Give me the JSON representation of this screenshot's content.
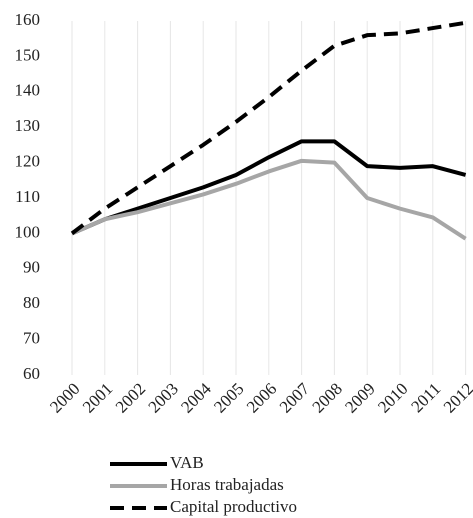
{
  "chart_data": {
    "type": "line",
    "categories": [
      "2000",
      "2001",
      "2002",
      "2003",
      "2004",
      "2005",
      "2006",
      "2007",
      "2008",
      "2009",
      "2010",
      "2011",
      "2012"
    ],
    "series": [
      {
        "name": "VAB",
        "color": "#000000",
        "dash": "solid",
        "values": [
          100,
          104,
          107,
          110,
          113,
          116.5,
          121.5,
          126,
          126,
          119,
          118.5,
          119,
          116.5
        ]
      },
      {
        "name": "Horas trabajadas",
        "color": "#a6a6a6",
        "dash": "solid",
        "values": [
          100,
          104,
          106,
          108.5,
          111,
          114,
          117.5,
          120.5,
          120,
          110,
          107,
          104.5,
          98.5
        ]
      },
      {
        "name": "Capital productivo",
        "color": "#000000",
        "dash": "dashed",
        "values": [
          100,
          107,
          113,
          119,
          125,
          131.5,
          138.5,
          146,
          153,
          156,
          156.5,
          158,
          159.5
        ]
      }
    ],
    "ylim": [
      60,
      160
    ],
    "yticks": [
      60,
      70,
      80,
      90,
      100,
      110,
      120,
      130,
      140,
      150,
      160
    ],
    "grid": "vertical",
    "legend": "bottom"
  }
}
